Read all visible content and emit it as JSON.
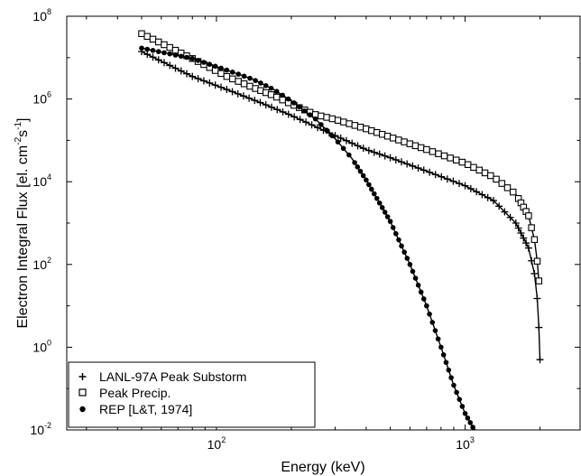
{
  "chart_data": {
    "type": "scatter",
    "xlabel": "Energy (keV)",
    "ylabel": {
      "parts": [
        {
          "t": "Electron Integral Flux [el. cm",
          "sup": false
        },
        {
          "t": "-2",
          "sup": true
        },
        {
          "t": "s",
          "sup": false
        },
        {
          "t": "-1",
          "sup": true
        },
        {
          "t": "]",
          "sup": false
        }
      ]
    },
    "x_scale": "log",
    "y_scale": "log",
    "xlim": [
      25,
      2900
    ],
    "ylim": [
      0.01,
      100000000
    ],
    "x_ticks": [
      {
        "value": 100,
        "base": "10",
        "exp": "2"
      },
      {
        "value": 1000,
        "base": "10",
        "exp": "3"
      }
    ],
    "y_ticks": [
      {
        "value": 0.01,
        "base": "10",
        "exp": "-2"
      },
      {
        "value": 1,
        "base": "10",
        "exp": "0"
      },
      {
        "value": 100,
        "base": "10",
        "exp": "2"
      },
      {
        "value": 10000,
        "base": "10",
        "exp": "4"
      },
      {
        "value": 1000000,
        "base": "10",
        "exp": "6"
      },
      {
        "value": 100000000,
        "base": "10",
        "exp": "8"
      }
    ],
    "grid": false,
    "legend_position": "bottom-left",
    "series": [
      {
        "name": "LANL-97A Peak Substorm",
        "marker": "plus",
        "color": "#000000",
        "sampled": true,
        "x": [
          50,
          80,
          110,
          150,
          200,
          300,
          400,
          500,
          700,
          1000,
          1300,
          1600,
          1800,
          1900,
          1950,
          1980,
          2000
        ],
        "y": [
          14000000,
          3500000,
          1700000,
          820000,
          400000,
          130000,
          60000,
          38000,
          18000,
          8000,
          3500,
          1000,
          250,
          60,
          15,
          3,
          0.5
        ]
      },
      {
        "name": "Peak Precip.",
        "marker": "square",
        "color": "#000000",
        "sampled": true,
        "x": [
          50,
          80,
          110,
          140,
          170,
          200,
          250,
          300,
          400,
          500,
          700,
          1000,
          1300,
          1600,
          1800,
          1900,
          1950,
          1980
        ],
        "y": [
          38000000,
          9500000,
          3500000,
          1900000,
          1200000,
          750000,
          420000,
          320000,
          190000,
          120000,
          60000,
          28000,
          13000,
          5000,
          1500,
          400,
          120,
          40
        ]
      },
      {
        "name": "REP [L&T, 1974]",
        "marker": "dot",
        "color": "#000000",
        "sampled": true,
        "x": [
          50,
          80,
          110,
          140,
          170,
          200,
          250,
          300,
          350,
          400,
          500,
          600,
          700,
          800,
          900,
          1000,
          1100
        ],
        "y": [
          17000000,
          9500000,
          5000000,
          3000000,
          1700000,
          900000,
          330000,
          110000,
          37000,
          11000,
          1100,
          100,
          10,
          1,
          0.12,
          0.025,
          0.009
        ]
      }
    ]
  }
}
